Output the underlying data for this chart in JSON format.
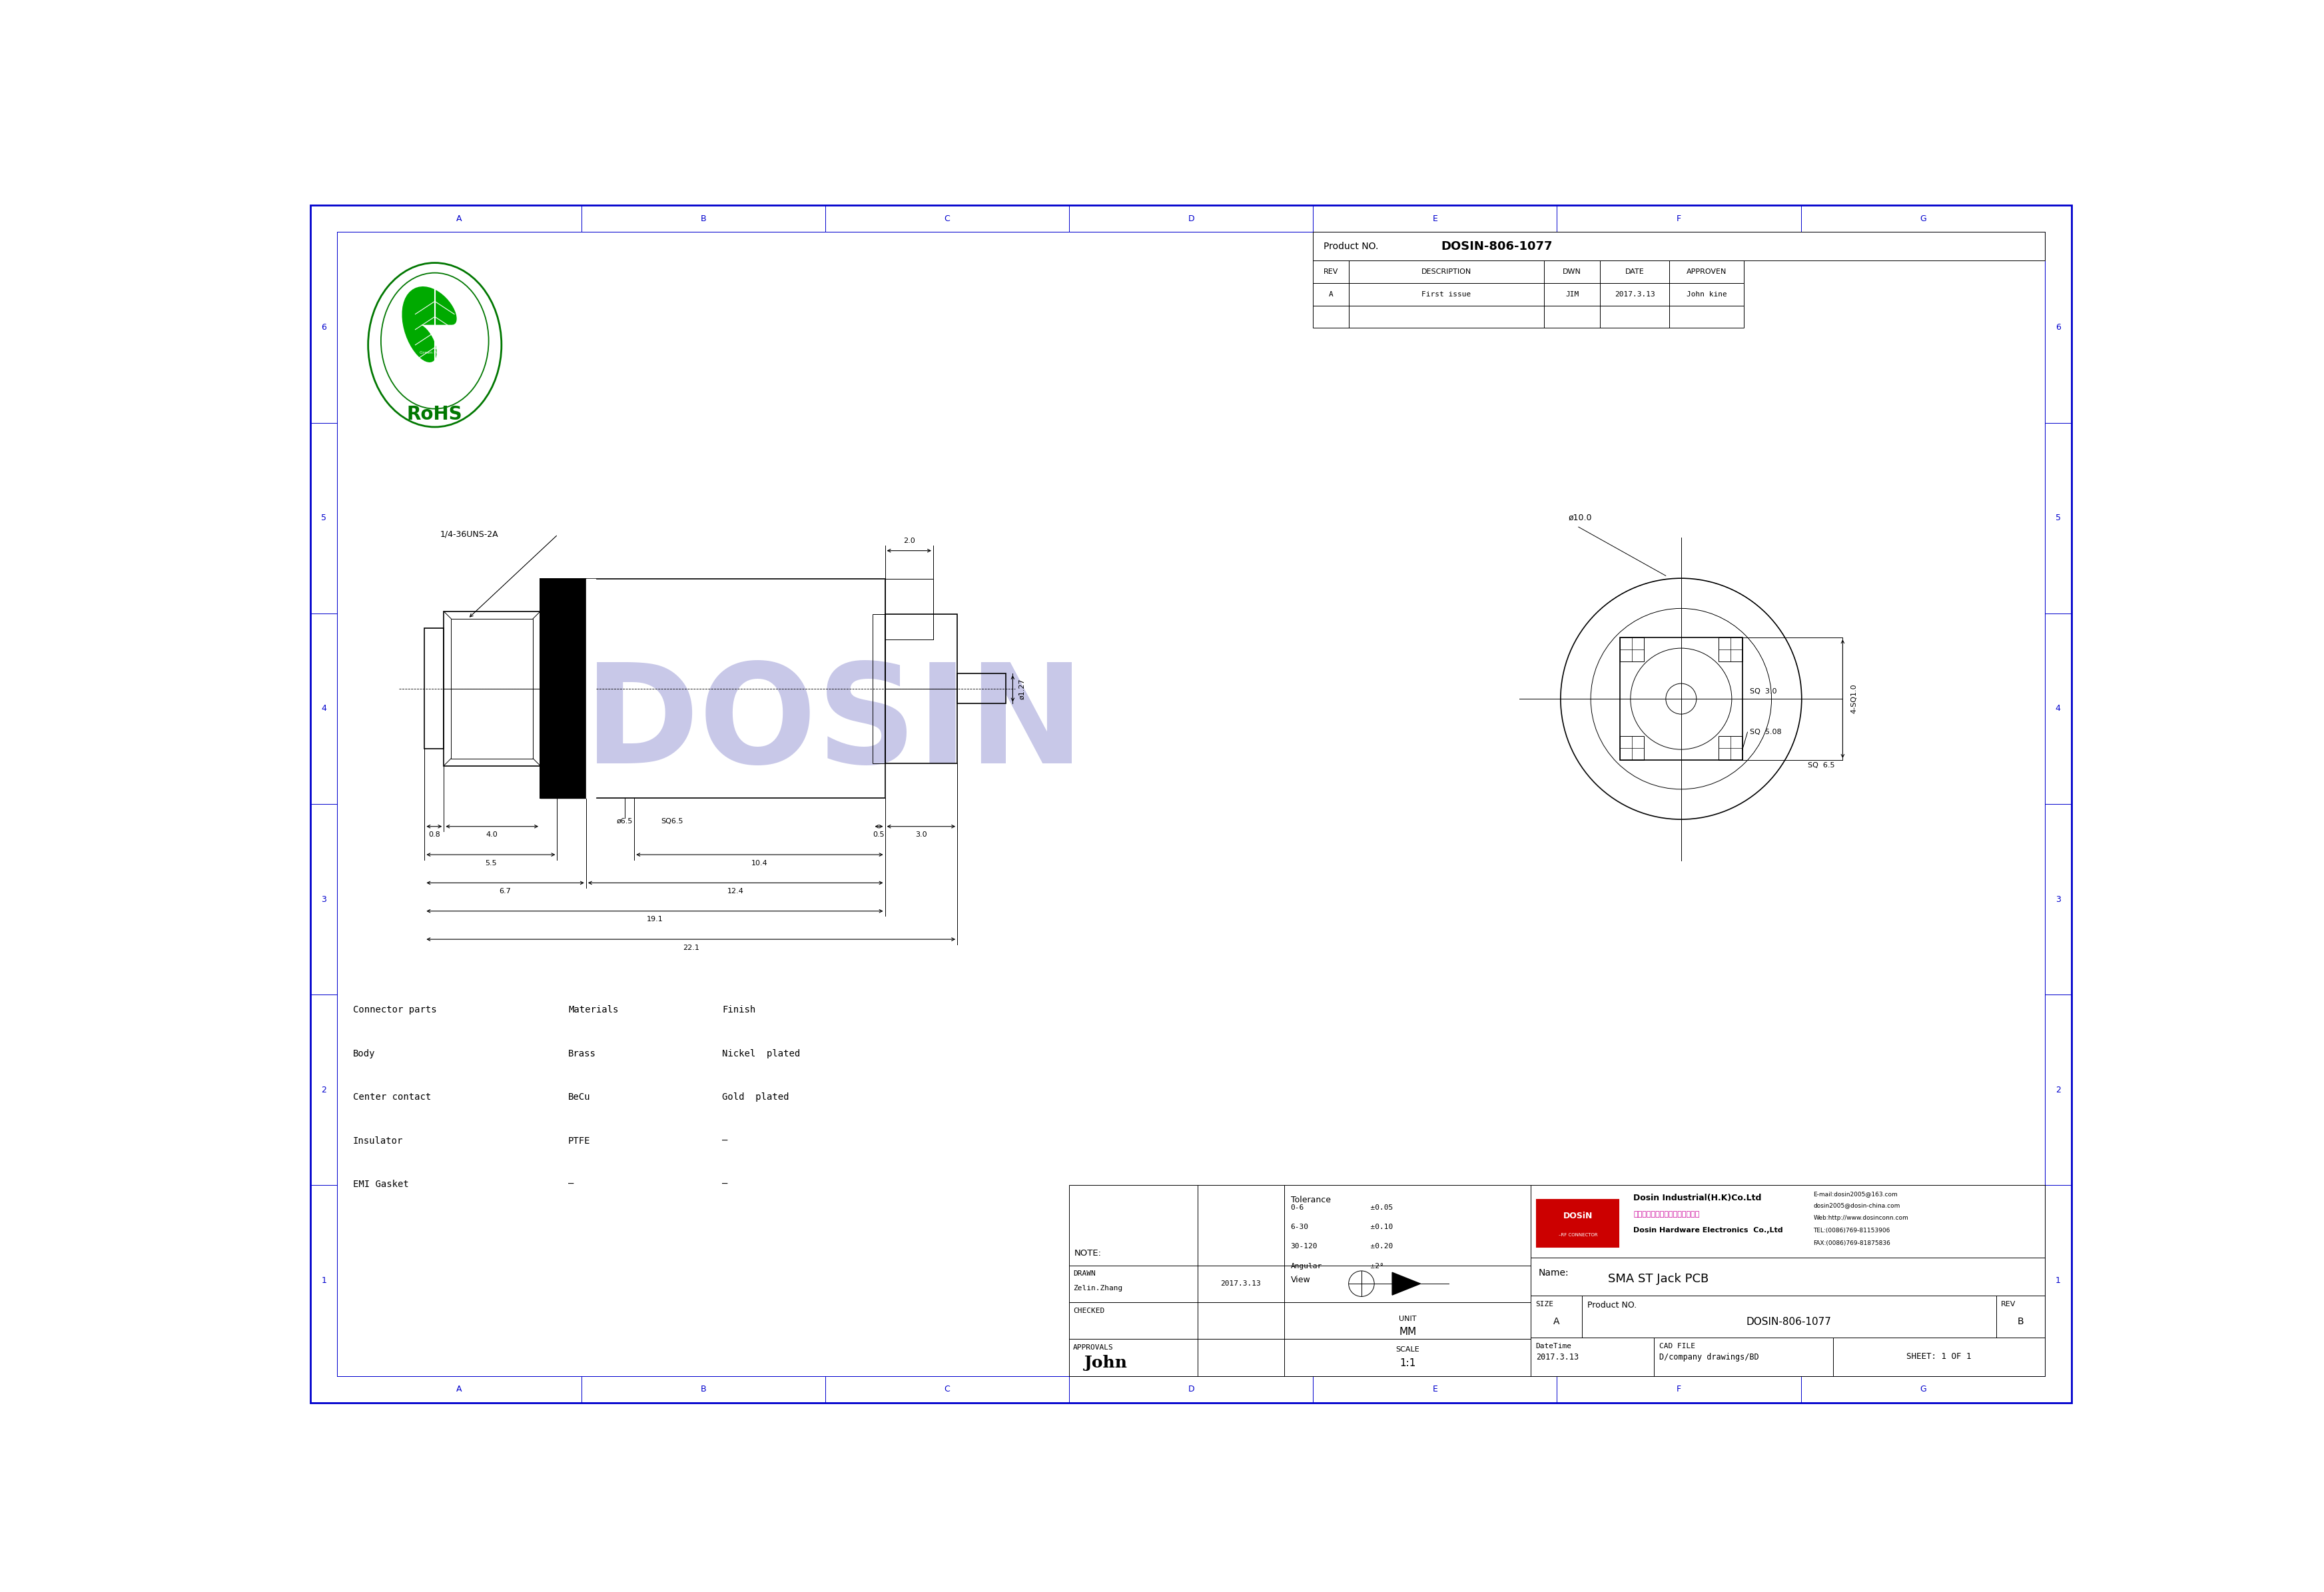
{
  "fig_width": 34.89,
  "fig_height": 23.9,
  "bg_color": "#ffffff",
  "bc": "#0000cd",
  "lc": "#000000",
  "grid_cols": [
    "A",
    "B",
    "C",
    "D",
    "E",
    "F",
    "G"
  ],
  "grid_rows": [
    "1",
    "2",
    "3",
    "4",
    "5",
    "6"
  ],
  "product_no": "DOSIN-806-1077",
  "rev_headers": [
    "REV",
    "DESCRIPTION",
    "DWN",
    "DATE",
    "APPROVEN"
  ],
  "rev_row1": [
    "A",
    "First issue",
    "JIM",
    "2017.3.13",
    "John kine"
  ],
  "connector_headers": [
    "Connector parts",
    "Materials",
    "Finish"
  ],
  "connector_rows": [
    [
      "Body",
      "Brass",
      "Nickel  plated"
    ],
    [
      "Center contact",
      "BeCu",
      "Gold  plated"
    ],
    [
      "Insulator",
      "PTFE",
      "–"
    ],
    [
      "EMI Gasket",
      "–",
      "–"
    ]
  ],
  "note_text": "NOTE:",
  "tol_rows": [
    [
      "0-6",
      "  ±0.05"
    ],
    [
      "6-30",
      "  ±0.10"
    ],
    [
      "30-120",
      "  ±0.20"
    ],
    [
      "Angular",
      "  ±2°"
    ]
  ],
  "drawn_label": "DRAWN",
  "drawn_by": "Zelin.Zhang",
  "drawn_date": "2017.3.13",
  "checked_label": "CHECKED",
  "approvals_label": "APPROVALS",
  "approvals_sig": "John",
  "view_label": "View",
  "unit_label": "UNIT",
  "unit_value": "MM",
  "scale_label": "SCALE",
  "scale_value": "1:1",
  "size_label": "SIZE",
  "size_value": "A",
  "product_label": "Product NO.",
  "product_value": "DOSIN-806-1077",
  "cad_label": "CAD FILE",
  "cad_value": "D/company drawings/BD",
  "dt_label": "DateTime",
  "dt_value": "2017.3.13",
  "sheet_value": "SHEET: 1 OF 1",
  "rev_label2": "REV",
  "rev_value2": "B",
  "name_label": "Name:",
  "name_value": "SMA ST Jack PCB",
  "co_name_en": "Dosin Industrial(H.K)Co.Ltd",
  "co_name_cn": "东莞市德索五金电子制品有限公司",
  "co_name2": "Dosin Hardware Electronics  Co.,Ltd",
  "co_email": "E-mail:dosin2005@163.com",
  "co_web1": "dosin2005@dosin-china.com",
  "co_web2": "Web:http://www.dosinconn.com",
  "co_tel": "TEL:(0086)769-81153906",
  "co_fax": "FAX:(0086)769-81875836",
  "wm_color": "#c8c8e8",
  "dosin_red": "#cc0000",
  "dosin_magenta": "#cc0099"
}
